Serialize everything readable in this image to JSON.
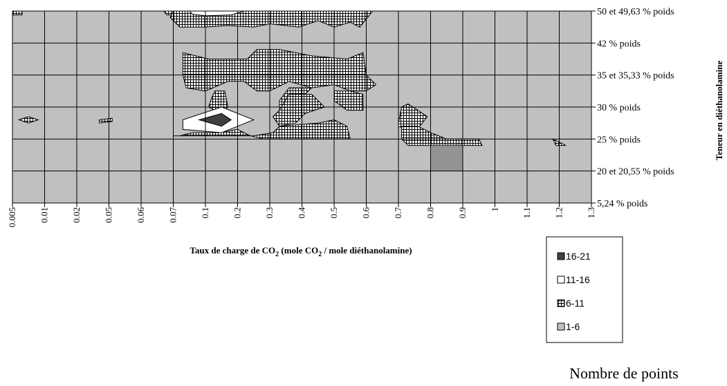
{
  "chart_data": {
    "type": "heatmap",
    "title": "",
    "xlabel_main": "Taux de charge de CO",
    "xlabel_sub": "2",
    "xlabel_mid": " (mole CO",
    "xlabel_sub2": "2",
    "xlabel_end": " / mole diéthanolamine)",
    "ylabel": "Teneur en diéthanolamine",
    "x_ticks": [
      "0.005",
      "0.01",
      "0.02",
      "0.05",
      "0.06",
      "0.07",
      "0.1",
      "0.2",
      "0.3",
      "0.4",
      "0.5",
      "0.6",
      "0.7",
      "0.8",
      "0.9",
      "1",
      "1.1",
      "1.2",
      "1.3"
    ],
    "y_ticks": [
      "5,24 % poids",
      "20 et 20,55 % poids",
      "25 % poids",
      "30 % poids",
      "35 et 35,33 % poids",
      "42 % poids",
      "50 et 49,63 % poids"
    ],
    "legend": {
      "title": "Nombre de points",
      "items": [
        {
          "label": "16-21",
          "color": "#404040",
          "pattern": "solid"
        },
        {
          "label": "11-16",
          "color": "#ffffff",
          "pattern": "solid"
        },
        {
          "label": "6-11",
          "color": "#000000",
          "pattern": "grid"
        },
        {
          "label": "1-6",
          "color": "#c0c0c0",
          "pattern": "solid"
        }
      ]
    },
    "regions": [
      {
        "range": "6-11",
        "points": [
          [
            0.1,
            0
          ],
          [
            0.3,
            0
          ],
          [
            0.3,
            0.12
          ],
          [
            0,
            0.12
          ],
          [
            0,
            0.02
          ]
        ]
      },
      {
        "range": "6-11",
        "points": [
          [
            4.7,
            0
          ],
          [
            5.2,
            0
          ],
          [
            5.0,
            0.12
          ],
          [
            4.8,
            0.12
          ]
        ]
      },
      {
        "range": "6-11",
        "points": [
          [
            5.0,
            0
          ],
          [
            11.2,
            0
          ],
          [
            10.8,
            0.5
          ],
          [
            10.5,
            0.35
          ],
          [
            10.0,
            0.5
          ],
          [
            9.5,
            0.3
          ],
          [
            8.9,
            0.5
          ],
          [
            8.0,
            0.4
          ],
          [
            7.5,
            0.5
          ],
          [
            6.7,
            0.45
          ],
          [
            6.0,
            0.5
          ],
          [
            5.2,
            0.5
          ],
          [
            4.9,
            0.2
          ]
        ]
      },
      {
        "range": "11-16",
        "points": [
          [
            5.5,
            0
          ],
          [
            7.2,
            0
          ],
          [
            6.8,
            0.12
          ],
          [
            6.0,
            0.15
          ],
          [
            5.6,
            0.1
          ]
        ]
      },
      {
        "range": "6-11",
        "points": [
          [
            5.3,
            1.3
          ],
          [
            6.1,
            1.5
          ],
          [
            7.3,
            1.5
          ],
          [
            7.6,
            1.2
          ],
          [
            8.3,
            1.2
          ],
          [
            9.3,
            1.4
          ],
          [
            10.4,
            1.5
          ],
          [
            10.9,
            1.3
          ],
          [
            11.0,
            2.0
          ],
          [
            11.3,
            2.3
          ],
          [
            11.0,
            2.5
          ],
          [
            10.5,
            2.5
          ],
          [
            10.0,
            2.3
          ],
          [
            9.3,
            2.4
          ],
          [
            8.6,
            2.2
          ],
          [
            8.0,
            2.5
          ],
          [
            7.6,
            2.5
          ],
          [
            7.2,
            2.2
          ],
          [
            6.7,
            2.2
          ],
          [
            6.0,
            2.5
          ],
          [
            5.4,
            2.4
          ],
          [
            5.3,
            2.0
          ]
        ]
      },
      {
        "range": "6-11",
        "points": [
          [
            6.3,
            2.5
          ],
          [
            6.6,
            2.5
          ],
          [
            6.7,
            3.0
          ],
          [
            6.5,
            3.2
          ],
          [
            6.1,
            3.0
          ],
          [
            6.2,
            2.7
          ]
        ]
      },
      {
        "range": "6-11",
        "points": [
          [
            10.0,
            2.5
          ],
          [
            10.5,
            2.5
          ],
          [
            10.9,
            2.6
          ],
          [
            10.9,
            3.1
          ],
          [
            10.4,
            3.1
          ],
          [
            10.0,
            2.8
          ]
        ]
      },
      {
        "range": "6-11",
        "points": [
          [
            8.6,
            2.4
          ],
          [
            9.3,
            2.4
          ],
          [
            9.1,
            2.6
          ],
          [
            8.8,
            2.9
          ],
          [
            8.3,
            3.3
          ],
          [
            8.3,
            2.8
          ]
        ]
      },
      {
        "range": "6-11",
        "points": [
          [
            8.6,
            2.6
          ],
          [
            9.3,
            2.6
          ],
          [
            9.7,
            3.0
          ],
          [
            9.1,
            3.2
          ],
          [
            8.8,
            3.5
          ],
          [
            8.3,
            3.6
          ],
          [
            8.1,
            3.3
          ],
          [
            8.3,
            3.1
          ]
        ]
      },
      {
        "range": "6-11",
        "points": [
          [
            12.0,
            3.5
          ],
          [
            12.1,
            3.0
          ],
          [
            12.3,
            2.9
          ],
          [
            12.9,
            3.3
          ],
          [
            12.5,
            3.8
          ],
          [
            12.0,
            3.6
          ]
        ]
      },
      {
        "range": "6-11",
        "points": [
          [
            5.0,
            3.9
          ],
          [
            5.2,
            3.9
          ],
          [
            5.6,
            3.8
          ],
          [
            6.4,
            3.8
          ],
          [
            7.0,
            3.7
          ],
          [
            7.4,
            3.9
          ],
          [
            7.8,
            4.0
          ],
          [
            8.8,
            4.0
          ],
          [
            9.4,
            4.0
          ],
          [
            10.0,
            4.0
          ],
          [
            10.5,
            4.0
          ],
          [
            10.4,
            3.6
          ],
          [
            10.0,
            3.4
          ],
          [
            9.5,
            3.5
          ],
          [
            8.3,
            3.6
          ],
          [
            8.1,
            3.8
          ],
          [
            7.5,
            3.9
          ],
          [
            6.8,
            3.9
          ],
          [
            5.8,
            3.9
          ]
        ]
      },
      {
        "range": "11-16",
        "points": [
          [
            5.3,
            3.4
          ],
          [
            6.5,
            3.0
          ],
          [
            7.0,
            3.2
          ],
          [
            7.5,
            3.4
          ],
          [
            7.0,
            3.6
          ],
          [
            6.5,
            3.8
          ],
          [
            5.3,
            3.7
          ]
        ]
      },
      {
        "range": "16-21",
        "points": [
          [
            5.8,
            3.4
          ],
          [
            6.5,
            3.2
          ],
          [
            6.8,
            3.4
          ],
          [
            6.5,
            3.6
          ]
        ]
      },
      {
        "range": "6-11",
        "points": [
          [
            0.2,
            3.4
          ],
          [
            0.5,
            3.3
          ],
          [
            0.8,
            3.4
          ],
          [
            0.5,
            3.5
          ]
        ]
      },
      {
        "range": "6-11",
        "points": [
          [
            2.7,
            3.4
          ],
          [
            3.1,
            3.35
          ],
          [
            3.1,
            3.45
          ],
          [
            2.7,
            3.5
          ]
        ]
      },
      {
        "range": "6-11",
        "points": [
          [
            12.1,
            4.0
          ],
          [
            12.1,
            3.6
          ],
          [
            12.6,
            3.6
          ],
          [
            13.0,
            3.8
          ],
          [
            13.5,
            4.0
          ],
          [
            14.5,
            4.0
          ],
          [
            14.6,
            4.2
          ],
          [
            14.0,
            4.2
          ],
          [
            13.0,
            4.2
          ],
          [
            12.3,
            4.2
          ]
        ]
      },
      {
        "range": "6-11",
        "points": [
          [
            16.8,
            4.0
          ],
          [
            17.2,
            4.2
          ],
          [
            16.9,
            4.2
          ]
        ]
      }
    ]
  }
}
